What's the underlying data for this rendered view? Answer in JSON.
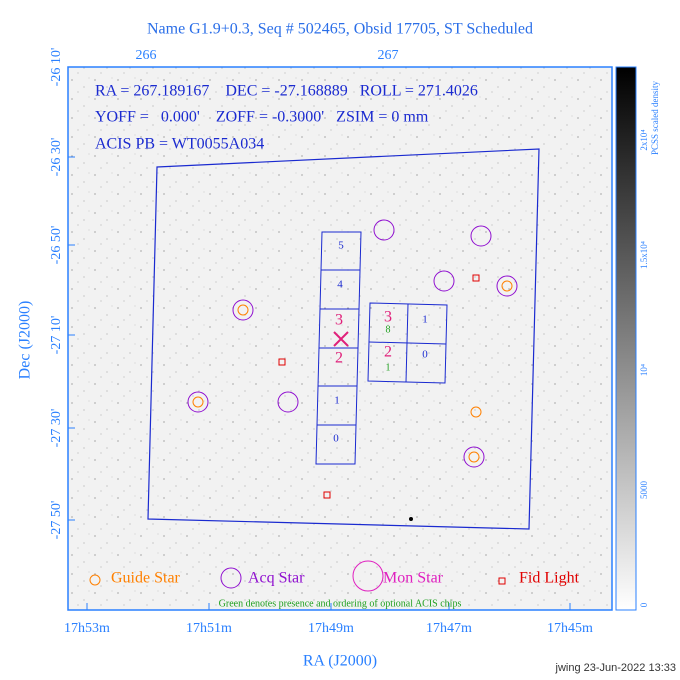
{
  "header": {
    "title": "Name G1.9+0.3, Seq # 502465, Obsid 17705, ST Scheduled",
    "info": [
      "RA = 267.189167    DEC = -27.168889   ROLL = 271.4026",
      "YOFF =   0.000'    ZOFF = -0.3000'   ZSIM = 0 mm",
      "ACIS PB = WT0055A034"
    ]
  },
  "axes": {
    "x_label": "RA (J2000)",
    "y_label": "Dec (J2000)",
    "x_ticks": [
      "17h53m",
      "17h51m",
      "17h49m",
      "17h47m",
      "17h45m"
    ],
    "top_ticks": [
      "266",
      "267"
    ],
    "y_ticks": [
      "-26 10'",
      "-26 30'",
      "-26 50'",
      "-27 10'",
      "-27 30'",
      "-27 50'"
    ]
  },
  "colorbar": {
    "label": "PCSS scaled density",
    "ticks": [
      "2x10⁴",
      "1.5x10⁴",
      "10⁴",
      "5000",
      "0"
    ]
  },
  "chips": {
    "left": [
      "5",
      "4",
      "3",
      "2",
      "1",
      "0"
    ],
    "right": [
      "3",
      "1",
      "2",
      "0"
    ],
    "optional_order": [
      "8",
      "1"
    ]
  },
  "legend": [
    "Guide Star",
    "Acq Star",
    "Mon Star",
    "Fid Light"
  ],
  "note": "Green denotes presence and ordering of optional ACIS chips",
  "footer": "jwing 23-Jun-2022 13:33"
}
